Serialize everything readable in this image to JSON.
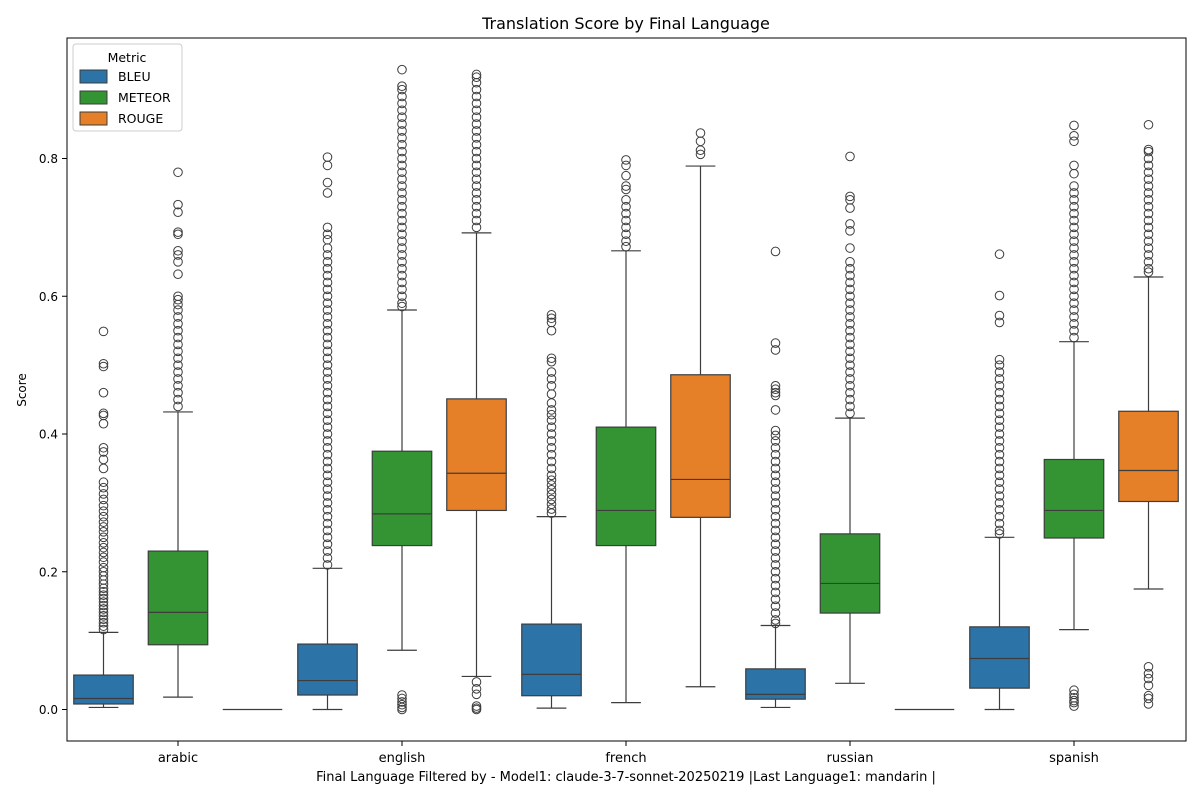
{
  "chart_data": {
    "type": "box",
    "title": "Translation Score by Final Language",
    "xlabel": "Final Language Filtered by - Model1: claude-3-7-sonnet-20250219 |Last Language1: mandarin |",
    "ylabel": "Score",
    "categories": [
      "arabic",
      "english",
      "french",
      "russian",
      "spanish"
    ],
    "ylim": [
      -0.045,
      0.97
    ],
    "yticks": [
      0.0,
      0.2,
      0.4,
      0.6,
      0.8
    ],
    "ytick_labels": [
      "0.0",
      "0.2",
      "0.4",
      "0.6",
      "0.8"
    ],
    "grid": false,
    "legend": {
      "title": "Metric",
      "position": "top-left",
      "entries": [
        "BLEU",
        "METEOR",
        "ROUGE"
      ]
    },
    "colors": {
      "BLEU": "#2c73a8",
      "METEOR": "#349434",
      "ROUGE": "#e57f28",
      "edge": "#3d3d3d"
    },
    "series": [
      {
        "name": "BLEU",
        "boxes": [
          {
            "whisker_low": 0.003,
            "q1": 0.008,
            "median": 0.016,
            "q3": 0.05,
            "whisker_high": 0.112,
            "outliers": [
              0.549,
              0.502,
              0.498,
              0.46,
              0.43,
              0.427,
              0.415,
              0.38,
              0.374,
              0.363,
              0.35,
              0.33,
              0.322,
              0.313,
              0.305,
              0.296,
              0.288,
              0.28,
              0.272,
              0.265,
              0.258,
              0.25,
              0.242,
              0.235,
              0.228,
              0.221,
              0.214,
              0.206,
              0.2,
              0.194,
              0.188,
              0.182,
              0.176,
              0.171,
              0.166,
              0.161,
              0.156,
              0.151,
              0.146,
              0.141,
              0.136,
              0.131,
              0.126,
              0.121,
              0.116
            ]
          },
          {
            "whisker_low": 0.0,
            "q1": 0.021,
            "median": 0.042,
            "q3": 0.095,
            "whisker_high": 0.205,
            "outliers": [
              0.802,
              0.79,
              0.765,
              0.75,
              0.7,
              0.69,
              0.682,
              0.67,
              0.66,
              0.65,
              0.64,
              0.63,
              0.62,
              0.61,
              0.6,
              0.59,
              0.58,
              0.57,
              0.56,
              0.55,
              0.54,
              0.53,
              0.52,
              0.51,
              0.5,
              0.49,
              0.48,
              0.47,
              0.46,
              0.45,
              0.44,
              0.43,
              0.42,
              0.41,
              0.4,
              0.39,
              0.38,
              0.37,
              0.36,
              0.35,
              0.34,
              0.33,
              0.32,
              0.31,
              0.3,
              0.29,
              0.28,
              0.27,
              0.26,
              0.25,
              0.24,
              0.23,
              0.22,
              0.21
            ]
          },
          {
            "whisker_low": 0.002,
            "q1": 0.02,
            "median": 0.051,
            "q3": 0.124,
            "whisker_high": 0.28,
            "outliers": [
              0.573,
              0.568,
              0.562,
              0.55,
              0.51,
              0.505,
              0.49,
              0.48,
              0.47,
              0.458,
              0.445,
              0.435,
              0.428,
              0.42,
              0.41,
              0.4,
              0.39,
              0.38,
              0.37,
              0.36,
              0.35,
              0.34,
              0.333,
              0.326,
              0.319,
              0.312,
              0.305,
              0.298,
              0.291,
              0.285
            ]
          },
          {
            "whisker_low": 0.003,
            "q1": 0.015,
            "median": 0.022,
            "q3": 0.059,
            "whisker_high": 0.122,
            "outliers": [
              0.665,
              0.532,
              0.522,
              0.47,
              0.465,
              0.46,
              0.456,
              0.435,
              0.405,
              0.398,
              0.39,
              0.38,
              0.37,
              0.36,
              0.35,
              0.34,
              0.33,
              0.32,
              0.31,
              0.3,
              0.29,
              0.28,
              0.27,
              0.26,
              0.25,
              0.24,
              0.23,
              0.22,
              0.21,
              0.2,
              0.19,
              0.18,
              0.17,
              0.16,
              0.15,
              0.14,
              0.13,
              0.125
            ]
          },
          {
            "whisker_low": 0.0,
            "q1": 0.031,
            "median": 0.074,
            "q3": 0.12,
            "whisker_high": 0.25,
            "outliers": [
              0.661,
              0.601,
              0.572,
              0.562,
              0.508,
              0.5,
              0.49,
              0.48,
              0.47,
              0.46,
              0.45,
              0.44,
              0.43,
              0.42,
              0.41,
              0.4,
              0.39,
              0.38,
              0.37,
              0.36,
              0.35,
              0.34,
              0.33,
              0.32,
              0.31,
              0.3,
              0.29,
              0.28,
              0.27,
              0.26,
              0.255
            ]
          }
        ]
      },
      {
        "name": "METEOR",
        "boxes": [
          {
            "whisker_low": 0.018,
            "q1": 0.094,
            "median": 0.141,
            "q3": 0.23,
            "whisker_high": 0.432,
            "outliers": [
              0.78,
              0.733,
              0.722,
              0.693,
              0.69,
              0.666,
              0.66,
              0.65,
              0.632,
              0.6,
              0.595,
              0.588,
              0.58,
              0.57,
              0.56,
              0.55,
              0.54,
              0.53,
              0.52,
              0.51,
              0.5,
              0.49,
              0.48,
              0.47,
              0.46,
              0.45,
              0.44
            ]
          },
          {
            "whisker_low": 0.086,
            "q1": 0.238,
            "median": 0.284,
            "q3": 0.375,
            "whisker_high": 0.58,
            "outliers": [
              0.929,
              0.905,
              0.9,
              0.89,
              0.88,
              0.87,
              0.86,
              0.85,
              0.84,
              0.83,
              0.82,
              0.81,
              0.8,
              0.79,
              0.78,
              0.77,
              0.76,
              0.75,
              0.74,
              0.73,
              0.72,
              0.71,
              0.7,
              0.69,
              0.68,
              0.67,
              0.66,
              0.65,
              0.64,
              0.63,
              0.62,
              0.61,
              0.6,
              0.59,
              0.585,
              0.021,
              0.016,
              0.011,
              0.007,
              0.003,
              0.0
            ]
          },
          {
            "whisker_low": 0.01,
            "q1": 0.238,
            "median": 0.289,
            "q3": 0.41,
            "whisker_high": 0.666,
            "outliers": [
              0.798,
              0.79,
              0.775,
              0.76,
              0.755,
              0.74,
              0.73,
              0.72,
              0.71,
              0.7,
              0.69,
              0.68,
              0.672
            ]
          },
          {
            "whisker_low": 0.038,
            "q1": 0.14,
            "median": 0.183,
            "q3": 0.255,
            "whisker_high": 0.423,
            "outliers": [
              0.803,
              0.745,
              0.74,
              0.728,
              0.705,
              0.695,
              0.67,
              0.65,
              0.64,
              0.63,
              0.62,
              0.61,
              0.6,
              0.59,
              0.58,
              0.57,
              0.56,
              0.55,
              0.54,
              0.53,
              0.52,
              0.51,
              0.5,
              0.49,
              0.48,
              0.47,
              0.46,
              0.45,
              0.44,
              0.43
            ]
          },
          {
            "whisker_low": 0.116,
            "q1": 0.249,
            "median": 0.289,
            "q3": 0.363,
            "whisker_high": 0.534,
            "outliers": [
              0.848,
              0.833,
              0.825,
              0.79,
              0.778,
              0.76,
              0.75,
              0.74,
              0.73,
              0.72,
              0.71,
              0.7,
              0.69,
              0.68,
              0.67,
              0.66,
              0.65,
              0.64,
              0.63,
              0.62,
              0.61,
              0.6,
              0.59,
              0.58,
              0.57,
              0.56,
              0.55,
              0.54,
              0.028,
              0.022,
              0.017,
              0.013,
              0.01,
              0.005
            ]
          }
        ]
      },
      {
        "name": "ROUGE",
        "boxes": [
          {
            "whisker_low": 0.0,
            "q1": 0.0,
            "median": 0.0,
            "q3": 0.0,
            "whisker_high": 0.0,
            "outliers": []
          },
          {
            "whisker_low": 0.048,
            "q1": 0.289,
            "median": 0.343,
            "q3": 0.451,
            "whisker_high": 0.692,
            "outliers": [
              0.922,
              0.918,
              0.91,
              0.9,
              0.89,
              0.88,
              0.87,
              0.86,
              0.85,
              0.84,
              0.83,
              0.82,
              0.81,
              0.8,
              0.79,
              0.78,
              0.77,
              0.76,
              0.75,
              0.74,
              0.73,
              0.72,
              0.71,
              0.7,
              0.04,
              0.03,
              0.022,
              0.005,
              0.002,
              0.0
            ]
          },
          {
            "whisker_low": 0.033,
            "q1": 0.279,
            "median": 0.334,
            "q3": 0.486,
            "whisker_high": 0.789,
            "outliers": [
              0.837,
              0.825,
              0.812,
              0.806
            ]
          },
          {
            "whisker_low": 0.0,
            "q1": 0.0,
            "median": 0.0,
            "q3": 0.0,
            "whisker_high": 0.0,
            "outliers": []
          },
          {
            "whisker_low": 0.175,
            "q1": 0.302,
            "median": 0.347,
            "q3": 0.433,
            "whisker_high": 0.628,
            "outliers": [
              0.849,
              0.813,
              0.81,
              0.8,
              0.79,
              0.78,
              0.77,
              0.76,
              0.75,
              0.74,
              0.73,
              0.72,
              0.71,
              0.7,
              0.69,
              0.68,
              0.67,
              0.66,
              0.65,
              0.64,
              0.635,
              0.062,
              0.052,
              0.045,
              0.035,
              0.02,
              0.016,
              0.008
            ]
          }
        ]
      }
    ]
  }
}
